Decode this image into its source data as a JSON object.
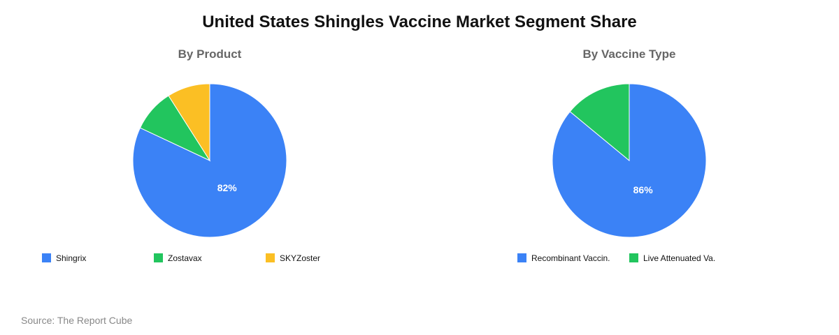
{
  "title": "United States Shingles Vaccine Market Segment Share",
  "source": "Source: The Report Cube",
  "chart_data": [
    {
      "type": "pie",
      "title": "By Product",
      "categories": [
        "Shingrix",
        "Zostavax",
        "SKYZoster"
      ],
      "values": [
        82,
        9,
        9
      ],
      "colors": [
        "#3b82f6",
        "#22c55e",
        "#fbbf24"
      ],
      "data_labels": [
        "82%",
        "",
        ""
      ],
      "legend_labels": [
        "Shingrix",
        "Zostavax",
        "SKYZoster"
      ],
      "legend_position": "bottom"
    },
    {
      "type": "pie",
      "title": "By Vaccine Type",
      "categories": [
        "Recombinant Vaccin.",
        "Live Attenuated Va."
      ],
      "values": [
        86,
        14
      ],
      "colors": [
        "#3b82f6",
        "#22c55e"
      ],
      "data_labels": [
        "86%",
        ""
      ],
      "legend_labels": [
        "Recombinant Vaccin.",
        "Live Attenuated Va."
      ],
      "legend_position": "bottom"
    }
  ]
}
